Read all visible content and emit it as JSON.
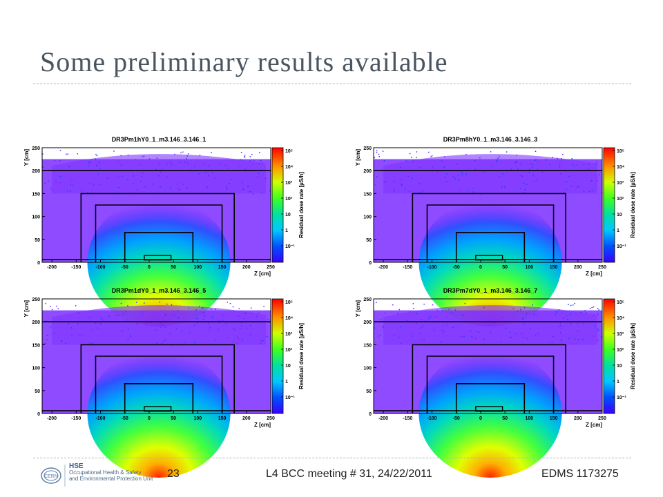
{
  "slide": {
    "title": "Some preliminary results available",
    "footer": {
      "page_number": "23",
      "meeting": "L4 BCC meeting # 31, 24/22/2011",
      "edms": "EDMS 1173275",
      "logo_org": "HSE",
      "logo_line1": "Occupational Health & Safety",
      "logo_line2": "and Environmental Protection Unit",
      "logo_seal": "CERN"
    }
  },
  "chart_data": [
    {
      "type": "heatmap",
      "title": "DR3Pm1hY0_1_m3.146_3.146_1",
      "xlabel": "Z [cm]",
      "ylabel": "Y [cm]",
      "colorbar_label": "Residual dose rate [µS/h]",
      "xlim": [
        -220,
        250
      ],
      "ylim": [
        0,
        250
      ],
      "x_ticks": [
        "-200",
        "-150",
        "-100",
        "-50",
        "0",
        "50",
        "100",
        "150",
        "200",
        "250"
      ],
      "y_ticks": [
        "0",
        "50",
        "100",
        "150",
        "200",
        "250"
      ],
      "colorbar_ticks": [
        "10⁻¹",
        "1",
        "10",
        "10²",
        "10³",
        "10⁴",
        "10⁵"
      ]
    },
    {
      "type": "heatmap",
      "title": "DR3Pm8hY0_1_m3.146_3.146_3",
      "xlabel": "Z [cm]",
      "ylabel": "Y [cm]",
      "colorbar_label": "Residual dose rate [µS/h]",
      "xlim": [
        -220,
        250
      ],
      "ylim": [
        0,
        250
      ],
      "x_ticks": [
        "-200",
        "-150",
        "-100",
        "-50",
        "0",
        "50",
        "100",
        "150",
        "200",
        "250"
      ],
      "y_ticks": [
        "0",
        "50",
        "100",
        "150",
        "200",
        "250"
      ],
      "colorbar_ticks": [
        "10⁻¹",
        "1",
        "10",
        "10²",
        "10³",
        "10⁴",
        "10⁵"
      ]
    },
    {
      "type": "heatmap",
      "title": "DR3Pm1dY0_1_m3.146_3.146_5",
      "xlabel": "Z [cm]",
      "ylabel": "Y [cm]",
      "colorbar_label": "Residual dose rate [µS/h]",
      "xlim": [
        -220,
        250
      ],
      "ylim": [
        0,
        250
      ],
      "x_ticks": [
        "-200",
        "-150",
        "-100",
        "-50",
        "0",
        "50",
        "100",
        "150",
        "200",
        "250"
      ],
      "y_ticks": [
        "0",
        "50",
        "100",
        "150",
        "200",
        "250"
      ],
      "colorbar_ticks": [
        "10⁻¹",
        "1",
        "10",
        "10²",
        "10³",
        "10⁴",
        "10⁵"
      ]
    },
    {
      "type": "heatmap",
      "title": "DR3Pm7dY0_1_m3.146_3.146_7",
      "xlabel": "Z [cm]",
      "ylabel": "Y [cm]",
      "colorbar_label": "Residual dose rate [µS/h]",
      "xlim": [
        -220,
        250
      ],
      "ylim": [
        0,
        250
      ],
      "x_ticks": [
        "-200",
        "-150",
        "-100",
        "-50",
        "0",
        "50",
        "100",
        "150",
        "200",
        "250"
      ],
      "y_ticks": [
        "0",
        "50",
        "100",
        "150",
        "200",
        "250"
      ],
      "colorbar_ticks": [
        "10⁻¹",
        "1",
        "10",
        "10²",
        "10³",
        "10⁴",
        "10⁵"
      ]
    }
  ]
}
